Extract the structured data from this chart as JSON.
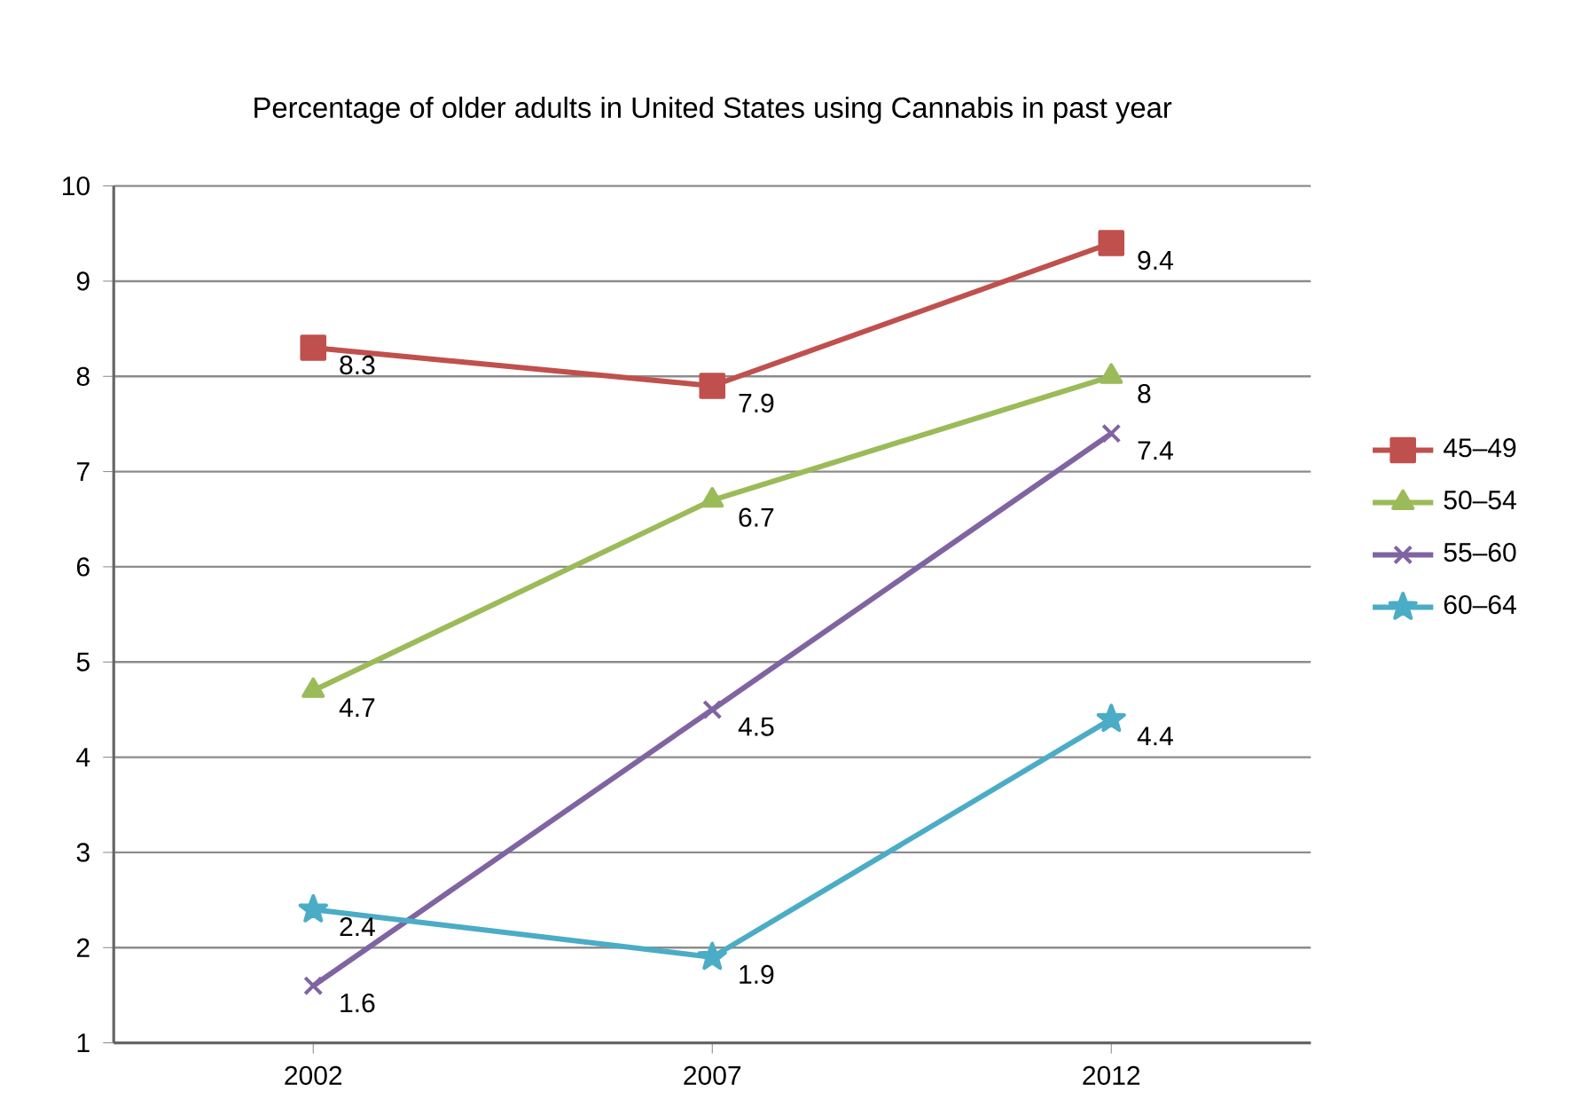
{
  "chart_data": {
    "type": "line",
    "title": "Percentage of older adults in United States using Cannabis in past year",
    "categories": [
      "2002",
      "2007",
      "2012"
    ],
    "series": [
      {
        "name": "45–49",
        "color": "#c0504d",
        "marker": "square",
        "values": [
          8.3,
          7.9,
          9.4
        ],
        "value_labels": [
          "8.3",
          "7.9",
          "9.4"
        ]
      },
      {
        "name": "50–54",
        "color": "#9bbb59",
        "marker": "triangle",
        "values": [
          4.7,
          6.7,
          8
        ],
        "value_labels": [
          "4.7",
          "6.7",
          "8"
        ]
      },
      {
        "name": "55–60",
        "color": "#8064a2",
        "marker": "cross",
        "values": [
          1.6,
          4.5,
          7.4
        ],
        "value_labels": [
          "1.6",
          "4.5",
          "7.4"
        ]
      },
      {
        "name": "60–64",
        "color": "#4bacc6",
        "marker": "star",
        "values": [
          2.4,
          1.9,
          4.4
        ],
        "value_labels": [
          "2.4",
          "1.9",
          "4.4"
        ]
      }
    ],
    "ylim": [
      1,
      10
    ],
    "yticks": [
      1,
      2,
      3,
      4,
      5,
      6,
      7,
      8,
      9,
      10
    ],
    "grid": "y",
    "legend": "right",
    "line_style": "solid"
  }
}
